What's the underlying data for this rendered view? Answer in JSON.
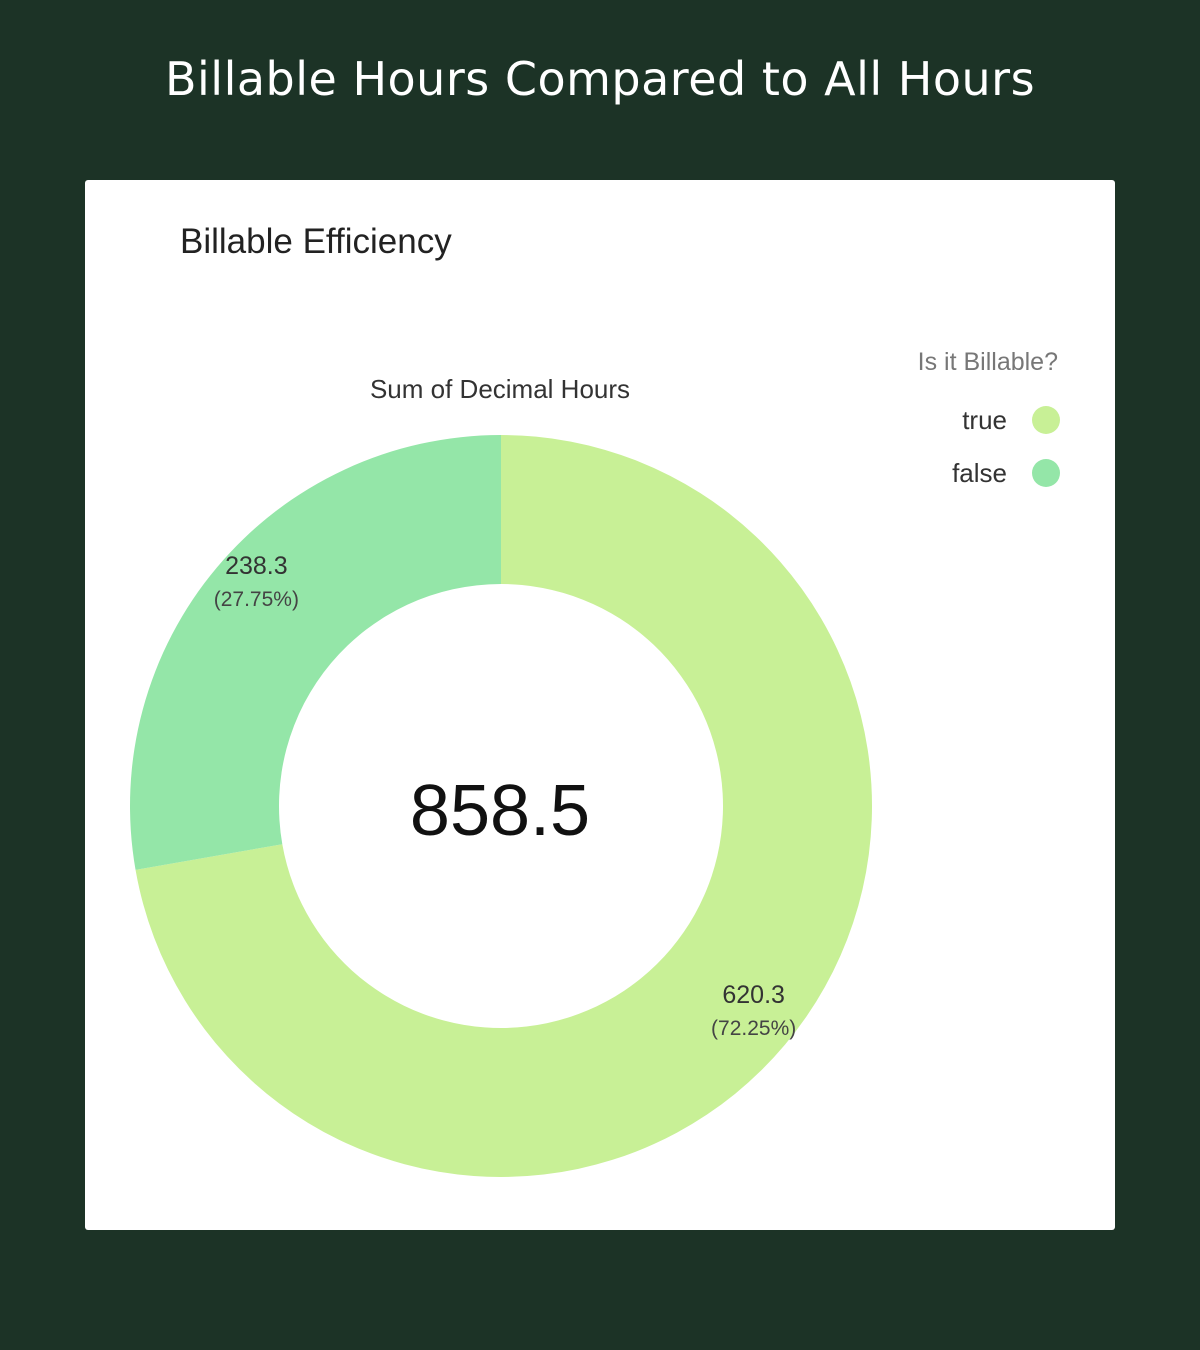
{
  "page": {
    "heading": "Billable Hours Compared to All Hours"
  },
  "colors": {
    "background": "#1c3326",
    "card": "#ffffff",
    "true_slice": "#c8f096",
    "false_slice": "#94e6a8"
  },
  "chart_data": {
    "type": "pie",
    "variant": "donut",
    "title": "Billable Efficiency",
    "subtitle": "Sum of Decimal Hours",
    "total_label": "858.5",
    "legend": {
      "title": "Is it Billable?",
      "placement": "top-right"
    },
    "series": [
      {
        "name": "true",
        "value": 620.3,
        "value_label": "620.3",
        "percent_label": "(72.25%)",
        "color": "#c8f096"
      },
      {
        "name": "false",
        "value": 238.3,
        "value_label": "238.3",
        "percent_label": "(27.75%)",
        "color": "#94e6a8"
      }
    ]
  }
}
